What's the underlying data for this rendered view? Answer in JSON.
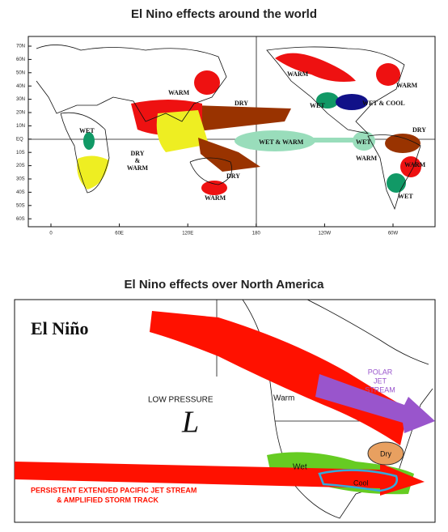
{
  "header": {
    "title": "El Nino effects around the world"
  },
  "world_map": {
    "lat_labels": [
      "70N",
      "60N",
      "50N",
      "40N",
      "30N",
      "20N",
      "10N",
      "EQ",
      "10S",
      "20S",
      "30S",
      "40S",
      "50S",
      "60S"
    ],
    "lon_labels": [
      "0",
      "60E",
      "120E",
      "180",
      "120W",
      "60W"
    ],
    "labels": [
      "WARM",
      "WARM",
      "WET",
      "WET & COOL",
      "WARM",
      "DRY",
      "WET & WARM",
      "WET",
      "WARM",
      "DRY",
      "WARM",
      "WET",
      "DRY",
      "WARM",
      "WET"
    ],
    "dry_warm": [
      "DRY",
      "&",
      "WARM"
    ]
  },
  "north_america": {
    "title": "El Nino effects over North America",
    "heading": "El Niño",
    "low_pressure": "LOW PRESSURE",
    "low_symbol": "L",
    "warm": "Warm",
    "polar_jet": [
      "POLAR",
      "JET",
      "STREAM"
    ],
    "wet": "Wet",
    "dry": "Dry",
    "cool": "Cool",
    "pacific_jet": [
      "PERSISTENT EXTENDED PACIFIC JET STREAM",
      "& AMPLIFIED STORM TRACK"
    ]
  }
}
